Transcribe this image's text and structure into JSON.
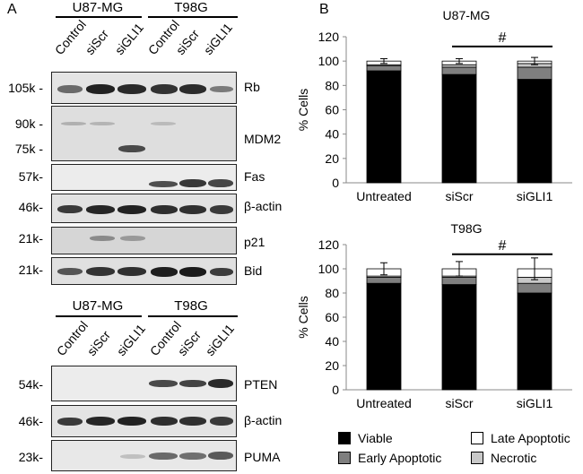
{
  "panels": {
    "a": "A",
    "b": "B"
  },
  "blots_top": {
    "groups": [
      "U87-MG",
      "T98G"
    ],
    "lanes": [
      "Control",
      "siScr",
      "siGLI1",
      "Control",
      "siScr",
      "siGLI1"
    ],
    "rows": [
      {
        "protein": "Rb",
        "markers": [
          "105k -"
        ]
      },
      {
        "protein": "MDM2",
        "markers": [
          "90k -",
          "75k -"
        ]
      },
      {
        "protein": "Fas",
        "markers": [
          "57k-"
        ]
      },
      {
        "protein": "β-actin",
        "markers": [
          "46k-"
        ]
      },
      {
        "protein": "p21",
        "markers": [
          "21k-"
        ]
      },
      {
        "protein": "Bid",
        "markers": [
          "21k-"
        ]
      }
    ]
  },
  "blots_bottom": {
    "groups": [
      "U87-MG",
      "T98G"
    ],
    "lanes": [
      "Control",
      "siScr",
      "siGLI1",
      "Control",
      "siScr",
      "siGLI1"
    ],
    "rows": [
      {
        "protein": "PTEN",
        "markers": [
          "54k-"
        ]
      },
      {
        "protein": "β-actin",
        "markers": [
          "46k-"
        ]
      },
      {
        "protein": "PUMA",
        "markers": [
          "23k-"
        ]
      }
    ]
  },
  "colors": {
    "viable": "#000000",
    "early_apoptotic": "#7f7f7f",
    "late_apoptotic": "#ffffff",
    "necrotic": "#c8c8c8"
  },
  "legend": {
    "viable": "Viable",
    "early_apoptotic": "Early Apoptotic",
    "late_apoptotic": "Late Apoptotic",
    "necrotic": "Necrotic"
  },
  "chart_data": [
    {
      "type": "bar",
      "stacked": true,
      "title": "U87-MG",
      "ylabel": "% Cells",
      "categories": [
        "Untreated",
        "siScr",
        "siGLI1"
      ],
      "yticks": [
        "0",
        "20",
        "40",
        "60",
        "80",
        "100",
        "120"
      ],
      "ylim": [
        0,
        120
      ],
      "series": [
        {
          "name": "Viable",
          "values": [
            92,
            89,
            85
          ]
        },
        {
          "name": "Early Apoptotic",
          "values": [
            4,
            6,
            10
          ]
        },
        {
          "name": "Necrotic",
          "values": [
            1,
            2,
            3
          ]
        },
        {
          "name": "Late Apoptotic",
          "values": [
            3,
            3,
            2
          ]
        }
      ],
      "error_values": [
        2,
        2,
        3
      ],
      "significance": {
        "label": "#",
        "between": [
          "siScr",
          "siGLI1"
        ]
      }
    },
    {
      "type": "bar",
      "stacked": true,
      "title": "T98G",
      "ylabel": "% Cells",
      "categories": [
        "Untreated",
        "siScr",
        "siGLI1"
      ],
      "yticks": [
        "0",
        "20",
        "40",
        "60",
        "80",
        "100",
        "120"
      ],
      "ylim": [
        0,
        120
      ],
      "series": [
        {
          "name": "Viable",
          "values": [
            88,
            87,
            80
          ]
        },
        {
          "name": "Early Apoptotic",
          "values": [
            5,
            6,
            8
          ]
        },
        {
          "name": "Necrotic",
          "values": [
            1,
            1,
            5
          ]
        },
        {
          "name": "Late Apoptotic",
          "values": [
            6,
            6,
            7
          ]
        }
      ],
      "error_values": [
        5,
        6,
        9
      ],
      "significance": {
        "label": "#",
        "between": [
          "siScr",
          "siGLI1"
        ]
      }
    }
  ]
}
